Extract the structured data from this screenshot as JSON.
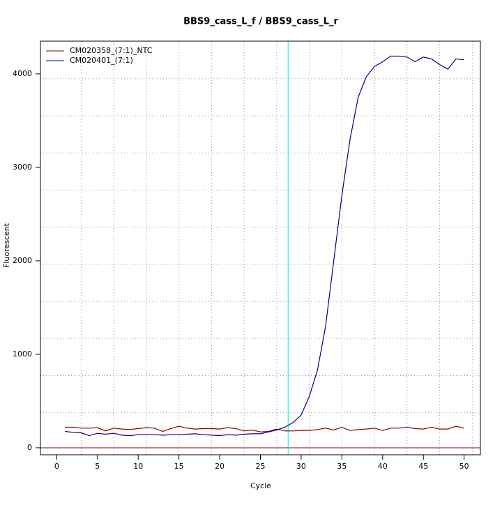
{
  "chart_data": {
    "type": "line",
    "title": "BBS9_cass_L_f / BBS9_cass_L_r",
    "x_label": "Cycle",
    "y_label": "Fluorescent",
    "x": [
      1,
      2,
      3,
      4,
      5,
      6,
      7,
      8,
      9,
      10,
      11,
      12,
      13,
      14,
      15,
      16,
      17,
      18,
      19,
      20,
      21,
      22,
      23,
      24,
      25,
      26,
      27,
      28,
      29,
      30,
      31,
      32,
      33,
      34,
      35,
      36,
      37,
      38,
      39,
      40,
      41,
      42,
      43,
      44,
      45,
      46,
      47,
      48,
      49,
      50
    ],
    "series": [
      {
        "name": "CM020358_(7:1)_NTC",
        "color": "#8b0000",
        "values": [
          220,
          220,
          210,
          210,
          215,
          180,
          210,
          200,
          195,
          205,
          215,
          210,
          175,
          205,
          230,
          210,
          200,
          205,
          205,
          200,
          215,
          205,
          180,
          190,
          170,
          175,
          200,
          180,
          180,
          185,
          185,
          195,
          210,
          190,
          220,
          185,
          195,
          200,
          210,
          185,
          210,
          210,
          220,
          205,
          200,
          220,
          200,
          200,
          230,
          210
        ]
      },
      {
        "name": "CM020401_(7:1)",
        "color": "#00008b",
        "values": [
          175,
          165,
          160,
          130,
          155,
          145,
          155,
          135,
          130,
          140,
          140,
          140,
          135,
          140,
          140,
          145,
          150,
          140,
          135,
          130,
          140,
          135,
          145,
          150,
          150,
          170,
          190,
          220,
          270,
          350,
          550,
          830,
          1300,
          2000,
          2700,
          3300,
          3750,
          3970,
          4080,
          4130,
          4190,
          4190,
          4180,
          4130,
          4180,
          4160,
          4100,
          4050,
          4160,
          4150
        ]
      }
    ],
    "xlim": [
      -2,
      52
    ],
    "ylim": [
      -75,
      4350
    ],
    "xticks": [
      0,
      5,
      10,
      15,
      20,
      25,
      30,
      35,
      40,
      45,
      50
    ],
    "yticks": [
      0,
      1000,
      2000,
      3000,
      4000
    ],
    "x_grid": [
      3,
      7,
      11,
      15,
      19,
      23,
      27,
      31,
      35,
      39,
      43,
      47,
      51
    ],
    "y_grid": [
      375,
      772,
      1169,
      1566,
      1963,
      2360,
      2757,
      3154,
      3551,
      3948
    ],
    "threshold_x": 28.4,
    "threshold_color": "#00e5ee",
    "baseline_y": 0,
    "baseline_color": "#8b0000",
    "legend": "top-left"
  }
}
